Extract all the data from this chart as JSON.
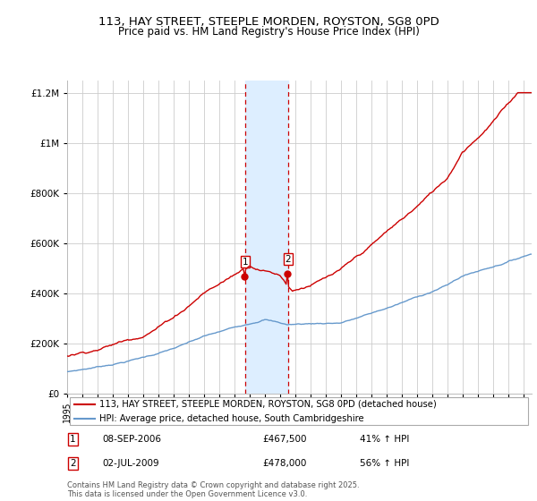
{
  "title": "113, HAY STREET, STEEPLE MORDEN, ROYSTON, SG8 0PD",
  "subtitle": "Price paid vs. HM Land Registry's House Price Index (HPI)",
  "legend_line1": "113, HAY STREET, STEEPLE MORDEN, ROYSTON, SG8 0PD (detached house)",
  "legend_line2": "HPI: Average price, detached house, South Cambridgeshire",
  "annotation1_label": "1",
  "annotation1_date": "08-SEP-2006",
  "annotation1_price": "£467,500",
  "annotation1_hpi": "41% ↑ HPI",
  "annotation2_label": "2",
  "annotation2_date": "02-JUL-2009",
  "annotation2_price": "£478,000",
  "annotation2_hpi": "56% ↑ HPI",
  "footnote": "Contains HM Land Registry data © Crown copyright and database right 2025.\nThis data is licensed under the Open Government Licence v3.0.",
  "sale1_year": 2006.69,
  "sale1_price": 467500,
  "sale2_year": 2009.5,
  "sale2_price": 478000,
  "hpi_color": "#6699cc",
  "price_color": "#cc0000",
  "shade_color": "#ddeeff",
  "ylim_max": 1250000,
  "ylim_min": 0,
  "xmin": 1995,
  "xmax": 2025.5
}
